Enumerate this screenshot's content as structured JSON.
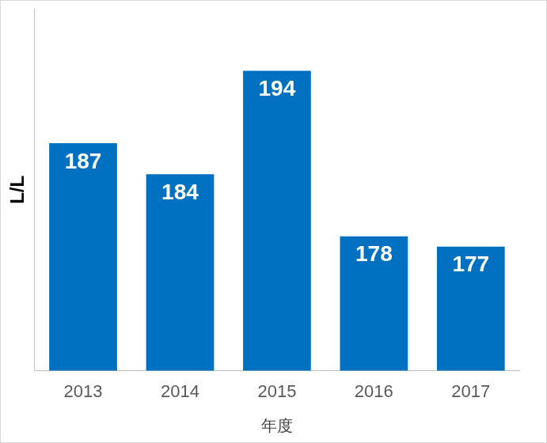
{
  "chart_data": {
    "type": "bar",
    "categories": [
      "2013",
      "2014",
      "2015",
      "2016",
      "2017"
    ],
    "values": [
      187,
      184,
      194,
      178,
      177
    ],
    "color": "#0070c0",
    "x_label": "年度",
    "y_label": "L/L",
    "ylim": [
      165,
      200
    ],
    "grid": false,
    "data_labels": true,
    "tick_labels": "x"
  }
}
